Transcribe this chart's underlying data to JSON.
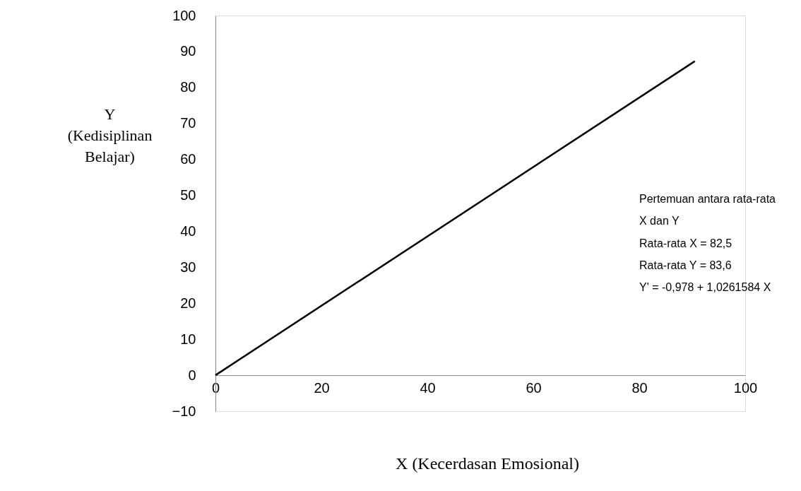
{
  "chart_data": {
    "type": "line",
    "xlabel": "X (Kecerdasan Emosional)",
    "ylabel": "Y\n(Kedisiplinan\nBelajar)",
    "x": [
      0,
      90.5
    ],
    "series": [
      {
        "color": "#000000",
        "values": [
          0,
          87.3
        ]
      }
    ],
    "xlim": [
      0,
      100
    ],
    "xticks": [
      0,
      20,
      40,
      60,
      80,
      100
    ],
    "ylim": [
      -10,
      100
    ],
    "yticks": [
      -10,
      0,
      10,
      20,
      30,
      40,
      50,
      60,
      70,
      80,
      90,
      100
    ],
    "grid": false,
    "marker": "none",
    "line_style": "solid",
    "annotations": [
      "Pertemuan antara rata-rata\n X dan Y",
      "Rata-rata X = 82,5",
      "Rata-rata Y = 83,6",
      "   Y' = -0,978 + 1,0261584 X"
    ]
  }
}
